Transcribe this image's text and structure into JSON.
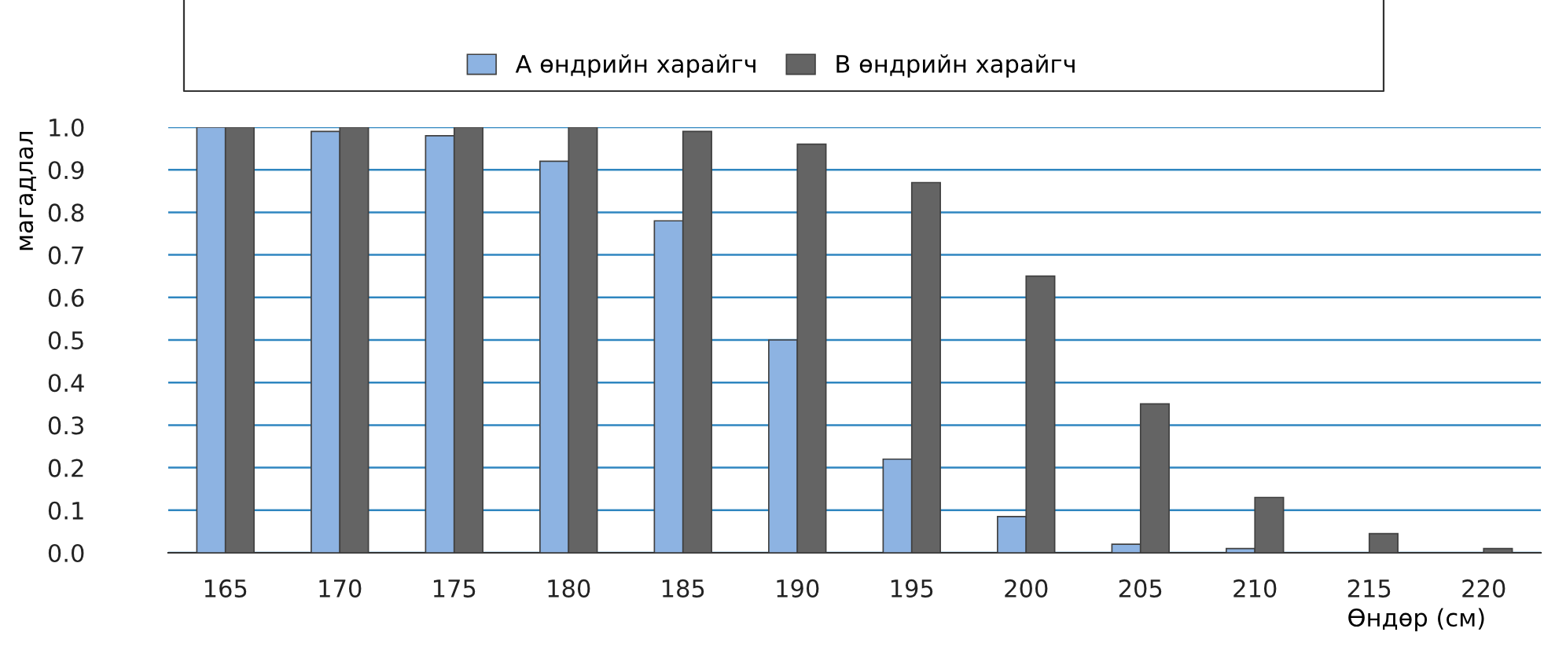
{
  "chart_data": {
    "type": "bar",
    "xlabel": "Өндөр (см)",
    "ylabel": "магадлал",
    "categories": [
      "165",
      "170",
      "175",
      "180",
      "185",
      "190",
      "195",
      "200",
      "205",
      "210",
      "215",
      "220"
    ],
    "series": [
      {
        "name": "А өндрийн харайгч",
        "color": "#8db3e2",
        "values": [
          1.0,
          0.99,
          0.98,
          0.92,
          0.78,
          0.5,
          0.22,
          0.085,
          0.02,
          0.01,
          0,
          0
        ]
      },
      {
        "name": "В өндрийн харайгч",
        "color": "#646464",
        "values": [
          1.0,
          1.0,
          1.0,
          1.0,
          0.99,
          0.96,
          0.87,
          0.65,
          0.35,
          0.13,
          0.045,
          0.01
        ]
      }
    ],
    "ylim": [
      0,
      1
    ],
    "yticks": [
      {
        "value": 0,
        "label": "0.0"
      },
      {
        "value": 0.1,
        "label": "0.1"
      },
      {
        "value": 0.2,
        "label": "0.2"
      },
      {
        "value": 0.3,
        "label": "0.3"
      },
      {
        "value": 0.4,
        "label": "0.4"
      },
      {
        "value": 0.5,
        "label": "0.5"
      },
      {
        "value": 0.6,
        "label": "0.6"
      },
      {
        "value": 0.7,
        "label": "0.7"
      },
      {
        "value": 0.8,
        "label": "0.8"
      },
      {
        "value": 0.9,
        "label": "0.9"
      },
      {
        "value": 1.0,
        "label": "1.0"
      }
    ],
    "grid": "y",
    "legend": "top"
  }
}
